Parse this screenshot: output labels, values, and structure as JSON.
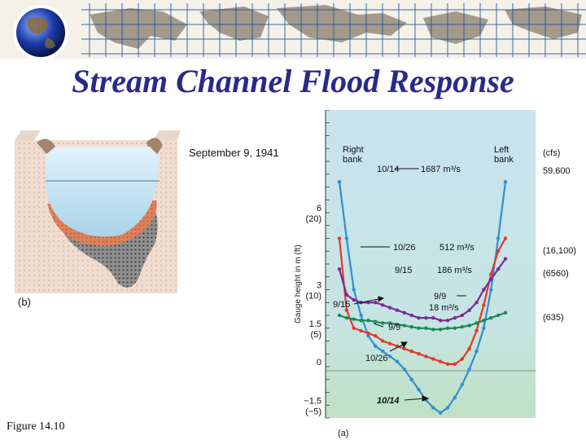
{
  "title": "Stream Channel Flood Response",
  "caption": "Figure  14.10",
  "cross_section": {
    "date_label": "September 9, 1941",
    "panel_label": "(b)"
  },
  "chart_data": {
    "type": "line",
    "panel_label": "(a)",
    "ylabel": "Gauge height in m (ft)",
    "y_ticks": [
      {
        "m": "6",
        "ft": "(20)"
      },
      {
        "m": "3",
        "ft": "(10)"
      },
      {
        "m": "1.5",
        "ft": "(5)"
      },
      {
        "m": "0",
        "ft": ""
      },
      {
        "m": "−1.5",
        "ft": "(−5)"
      }
    ],
    "ylim": [
      -2,
      10
    ],
    "right_bank": "Right\nbank",
    "left_bank": "Left\nbank",
    "right_axis_header": "(cfs)",
    "annotations": [
      {
        "date": "10/14",
        "discharge": "1687 m³/s",
        "cfs": "59,600"
      },
      {
        "date": "10/26",
        "discharge": "512 m³/s",
        "cfs": "(16,100)"
      },
      {
        "date": "9/15",
        "discharge": "186 m³/s",
        "cfs": "(6560)"
      },
      {
        "date": "9/9",
        "discharge": "18 m³/s",
        "cfs": "(635)"
      }
    ],
    "curve_labels": [
      "9/15",
      "9/9",
      "10/26",
      "10/14"
    ],
    "series": [
      {
        "name": "10/14",
        "color": "#2f8fd0",
        "values": [
          7.2,
          5.0,
          3.0,
          2.0,
          1.2,
          0.8,
          0.6,
          0.4,
          0.2,
          -0.1,
          -0.5,
          -0.9,
          -1.3,
          -1.6,
          -1.8,
          -1.6,
          -1.2,
          -0.7,
          -0.1,
          0.6,
          1.5,
          3.0,
          5.0,
          7.2
        ]
      },
      {
        "name": "10/26",
        "color": "#e03a2a",
        "values": [
          5.0,
          2.2,
          1.5,
          1.4,
          1.3,
          1.2,
          1.0,
          0.9,
          0.8,
          0.7,
          0.6,
          0.5,
          0.4,
          0.3,
          0.2,
          0.1,
          0.1,
          0.3,
          0.7,
          1.4,
          2.4,
          3.6,
          4.5,
          5.0
        ]
      },
      {
        "name": "9/15",
        "color": "#7a2a9a",
        "values": [
          3.8,
          2.8,
          2.6,
          2.5,
          2.5,
          2.5,
          2.4,
          2.3,
          2.2,
          2.1,
          2.0,
          1.9,
          1.9,
          1.9,
          1.8,
          1.8,
          1.9,
          2.0,
          2.2,
          2.5,
          3.0,
          3.4,
          3.8,
          4.2
        ]
      },
      {
        "name": "9/9",
        "color": "#1a8a5a",
        "values": [
          2.0,
          1.9,
          1.85,
          1.8,
          1.8,
          1.75,
          1.7,
          1.7,
          1.65,
          1.6,
          1.55,
          1.5,
          1.5,
          1.45,
          1.45,
          1.5,
          1.5,
          1.55,
          1.6,
          1.7,
          1.8,
          1.9,
          2.0,
          2.1
        ]
      }
    ]
  },
  "colors": {
    "title": "#2a2a8a",
    "chart_bg": "#c9e3ef",
    "chart_bg_bottom": "#bfe1c4"
  }
}
